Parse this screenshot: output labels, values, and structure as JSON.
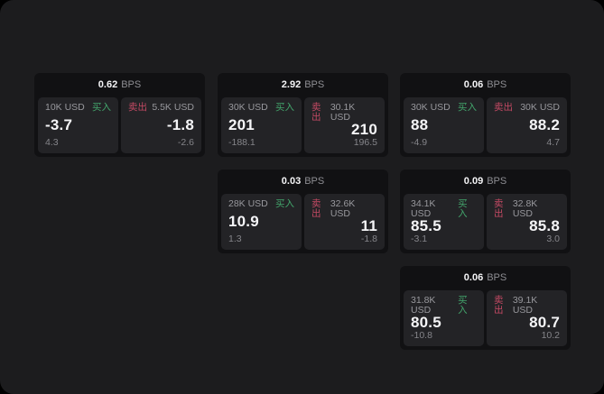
{
  "colors": {
    "window_bg": "#1C1C1E",
    "card_bg": "#111113",
    "panel_bg": "#232326",
    "buy_green": "#43A56C",
    "sell_red": "#C44A64"
  },
  "cards": [
    {
      "bps": "0.62",
      "unit": "BPS",
      "buy": {
        "amount": "10K USD",
        "side": "买入",
        "price": "-3.7",
        "change": "4.3"
      },
      "sell": {
        "side": "卖出",
        "amount": "5.5K USD",
        "price": "-1.8",
        "change": "-2.6"
      }
    },
    {
      "bps": "2.92",
      "unit": "BPS",
      "buy": {
        "amount": "30K USD",
        "side": "买入",
        "price": "201",
        "change": "-188.1"
      },
      "sell": {
        "side": "卖出",
        "amount": "30.1K USD",
        "price": "210",
        "change": "196.5"
      }
    },
    {
      "bps": "0.06",
      "unit": "BPS",
      "buy": {
        "amount": "30K USD",
        "side": "买入",
        "price": "88",
        "change": "-4.9"
      },
      "sell": {
        "side": "卖出",
        "amount": "30K USD",
        "price": "88.2",
        "change": "4.7"
      }
    },
    {
      "bps": "0.03",
      "unit": "BPS",
      "buy": {
        "amount": "28K USD",
        "side": "买入",
        "price": "10.9",
        "change": "1.3"
      },
      "sell": {
        "side": "卖出",
        "amount": "32.6K USD",
        "price": "11",
        "change": "-1.8"
      }
    },
    {
      "bps": "0.09",
      "unit": "BPS",
      "buy": {
        "amount": "34.1K USD",
        "side": "买入",
        "price": "85.5",
        "change": "-3.1"
      },
      "sell": {
        "side": "卖出",
        "amount": "32.8K USD",
        "price": "85.8",
        "change": "3.0"
      }
    },
    {
      "bps": "0.06",
      "unit": "BPS",
      "buy": {
        "amount": "31.8K USD",
        "side": "买入",
        "price": "80.5",
        "change": "-10.8"
      },
      "sell": {
        "side": "卖出",
        "amount": "39.1K USD",
        "price": "80.7",
        "change": "10.2"
      }
    }
  ]
}
